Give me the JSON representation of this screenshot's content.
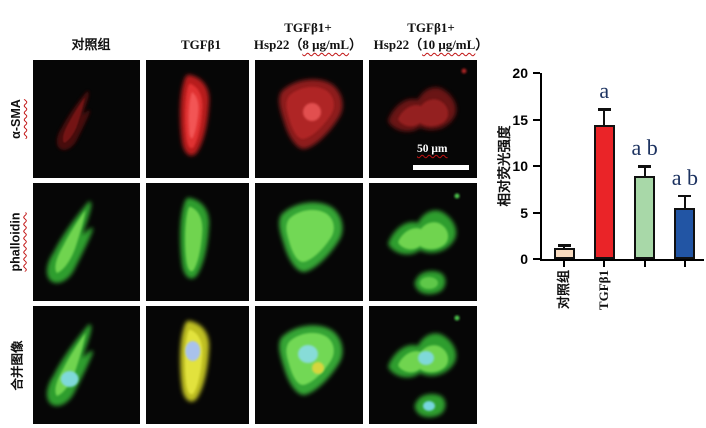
{
  "figure": {
    "column_headers": [
      {
        "line1": "对照组"
      },
      {
        "line1": "TGFβ1"
      },
      {
        "line1": "TGFβ1+",
        "line2_prefix": "Hsp22（",
        "line2_dose": "8 μg/mL",
        "line2_suffix": "）"
      },
      {
        "line1": "TGFβ1+",
        "line2_prefix": "Hsp22（",
        "line2_dose": "10 μg/mL",
        "line2_suffix": "）"
      }
    ],
    "row_labels": [
      {
        "text": "α-SMA"
      },
      {
        "text": "phalloidin"
      },
      {
        "text": "合并图像"
      }
    ],
    "scale_bar": {
      "text": "50 μm"
    }
  },
  "chart_data": {
    "type": "bar",
    "title": "",
    "xlabel": "",
    "ylabel": "相对荧光强度",
    "ylim": [
      0,
      20
    ],
    "yticks": [
      0,
      5,
      10,
      15,
      20
    ],
    "grid": false,
    "legend": "none",
    "categories": [
      "对照组",
      "TGFβ1",
      "TGFβ1+Hsp22（8 μg/mL）",
      "TGFβ1+Hsp22（10 μg/mL）"
    ],
    "xtick_labels": [
      "对照组",
      "TGFβ1",
      "",
      ""
    ],
    "values": [
      1.2,
      14.4,
      8.9,
      5.5
    ],
    "errors": [
      0.3,
      1.7,
      1.1,
      1.3
    ],
    "significance": [
      "",
      "a",
      "a b",
      "a b"
    ],
    "bar_colors": [
      "#fadcc0",
      "#ea2428",
      "#a8d8a8",
      "#2255a4"
    ],
    "bar_border": "#101010",
    "sig_color": "#1c3260"
  }
}
